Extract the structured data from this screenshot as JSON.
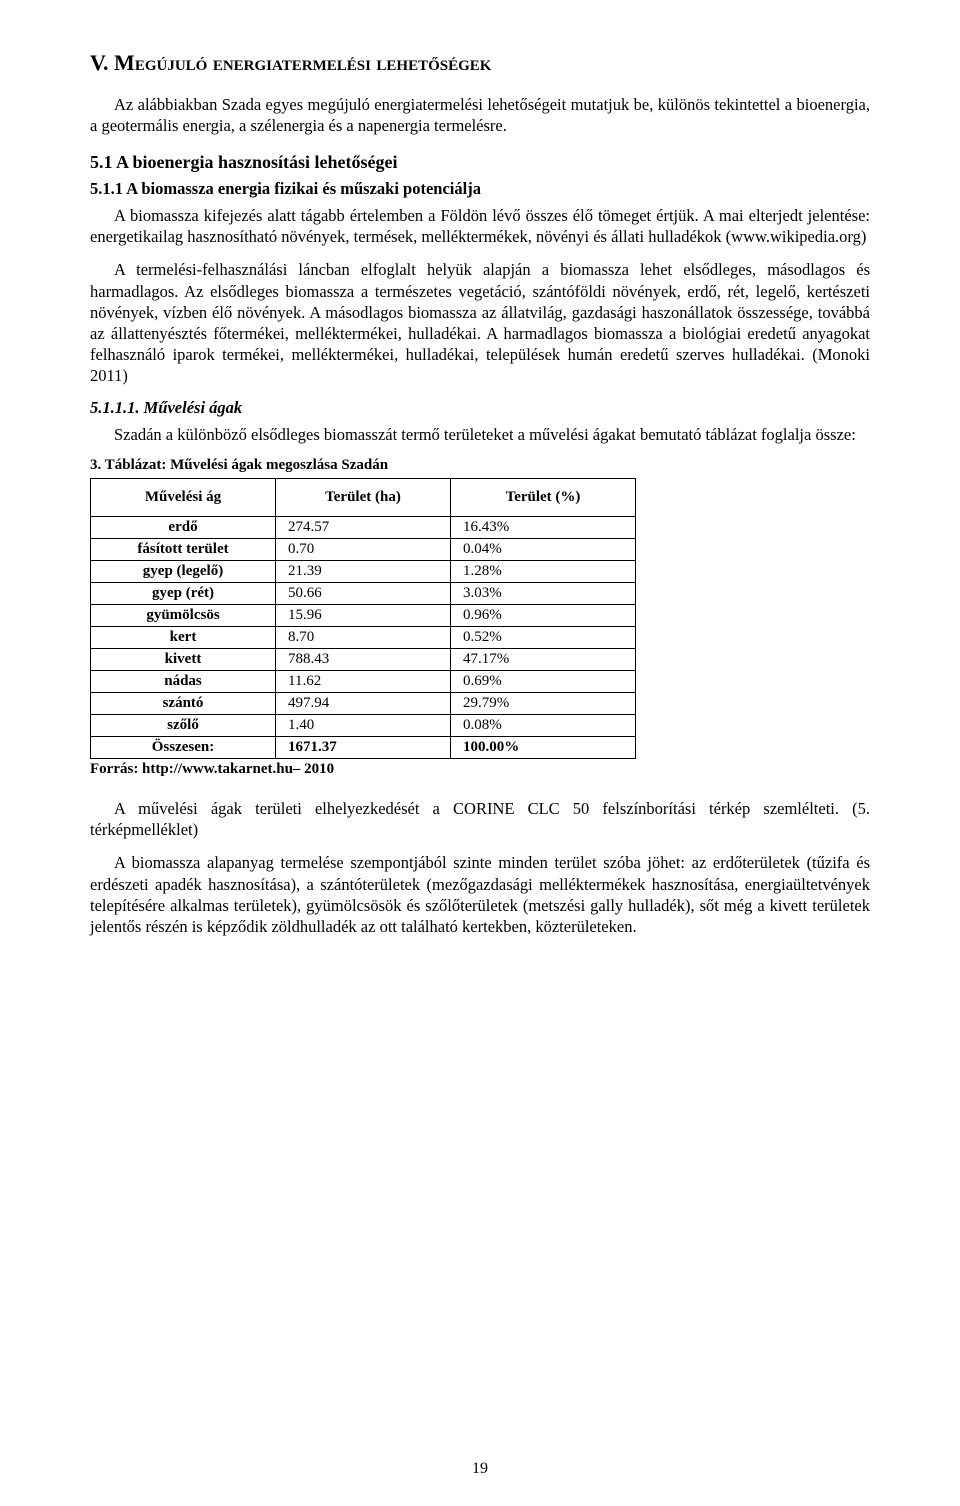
{
  "heading_main": "V. Megújuló energiatermelési lehetőségek",
  "para1": "Az alábbiakban Szada egyes megújuló energiatermelési lehetőségeit mutatjuk be, különös tekintettel a bioenergia, a geotermális energia, a szélenergia és a napenergia termelésre.",
  "heading_5_1": "5.1 A bioenergia hasznosítási lehetőségei",
  "heading_5_1_1": "5.1.1 A biomassza energia fizikai és műszaki potenciálja",
  "para2": "A biomassza kifejezés alatt tágabb értelemben a Földön lévő összes élő tömeget értjük. A mai elterjedt jelentése: energetikailag hasznosítható növények, termések, melléktermékek, növényi és állati hulladékok (www.wikipedia.org)",
  "para3": "A termelési-felhasználási láncban elfoglalt helyük alapján a biomassza lehet elsődleges, másodlagos és harmadlagos. Az elsődleges biomassza a természetes vegetáció, szántóföldi növények, erdő, rét, legelő, kertészeti növények, vízben élő növények. A másodlagos biomassza az állatvilág, gazdasági haszonállatok összessége, továbbá az állattenyésztés főtermékei, melléktermékei, hulladékai. A harmadlagos biomassza a biológiai eredetű anyagokat felhasználó iparok termékei, melléktermékei, hulladékai, települések humán eredetű szerves hulladékai. (Monoki 2011)",
  "heading_5_1_1_1": "5.1.1.1. Művelési ágak",
  "para4": "Szadán a különböző elsődleges biomasszát termő területeket a művelési ágakat bemutató táblázat foglalja össze:",
  "table_caption": "3. Táblázat: Művelési ágak megoszlása Szadán",
  "table": {
    "columns": [
      "Művelési ág",
      "Terület (ha)",
      "Terület (%)"
    ],
    "rows": [
      {
        "label": "erdő",
        "area": "274.57",
        "pct": "16.43%"
      },
      {
        "label": "fásított terület",
        "area": "0.70",
        "pct": "0.04%"
      },
      {
        "label": "gyep (legelő)",
        "area": "21.39",
        "pct": "1.28%"
      },
      {
        "label": "gyep (rét)",
        "area": "50.66",
        "pct": "3.03%"
      },
      {
        "label": "gyümölcsös",
        "area": "15.96",
        "pct": "0.96%"
      },
      {
        "label": "kert",
        "area": "8.70",
        "pct": "0.52%"
      },
      {
        "label": "kivett",
        "area": "788.43",
        "pct": "47.17%"
      },
      {
        "label": "nádas",
        "area": "11.62",
        "pct": "0.69%"
      },
      {
        "label": "szántó",
        "area": "497.94",
        "pct": "29.79%"
      },
      {
        "label": "szőlő",
        "area": "1.40",
        "pct": "0.08%"
      }
    ],
    "total": {
      "label": "Összesen:",
      "area": "1671.37",
      "pct": "100.00%"
    }
  },
  "source_line": "Forrás: http://www.takarnet.hu– 2010",
  "para5": "A művelési ágak területi elhelyezkedését a CORINE CLC 50 felszínborítási térkép szemlélteti. (5. térképmelléklet)",
  "para6": "A biomassza alapanyag termelése szempontjából szinte minden terület szóba jöhet: az erdőterületek (tűzifa és erdészeti apadék hasznosítása), a szántóterületek (mezőgazdasági melléktermékek hasznosítása, energiaültetvények telepítésére alkalmas területek), gyümölcsösök és szőlőterületek (metszési gally hulladék), sőt még a kivett területek jelentős részén is képződik zöldhulladék az ott található kertekben, közterületeken.",
  "page_number": "19",
  "colors": {
    "text": "#000000",
    "background": "#ffffff",
    "border": "#000000"
  }
}
